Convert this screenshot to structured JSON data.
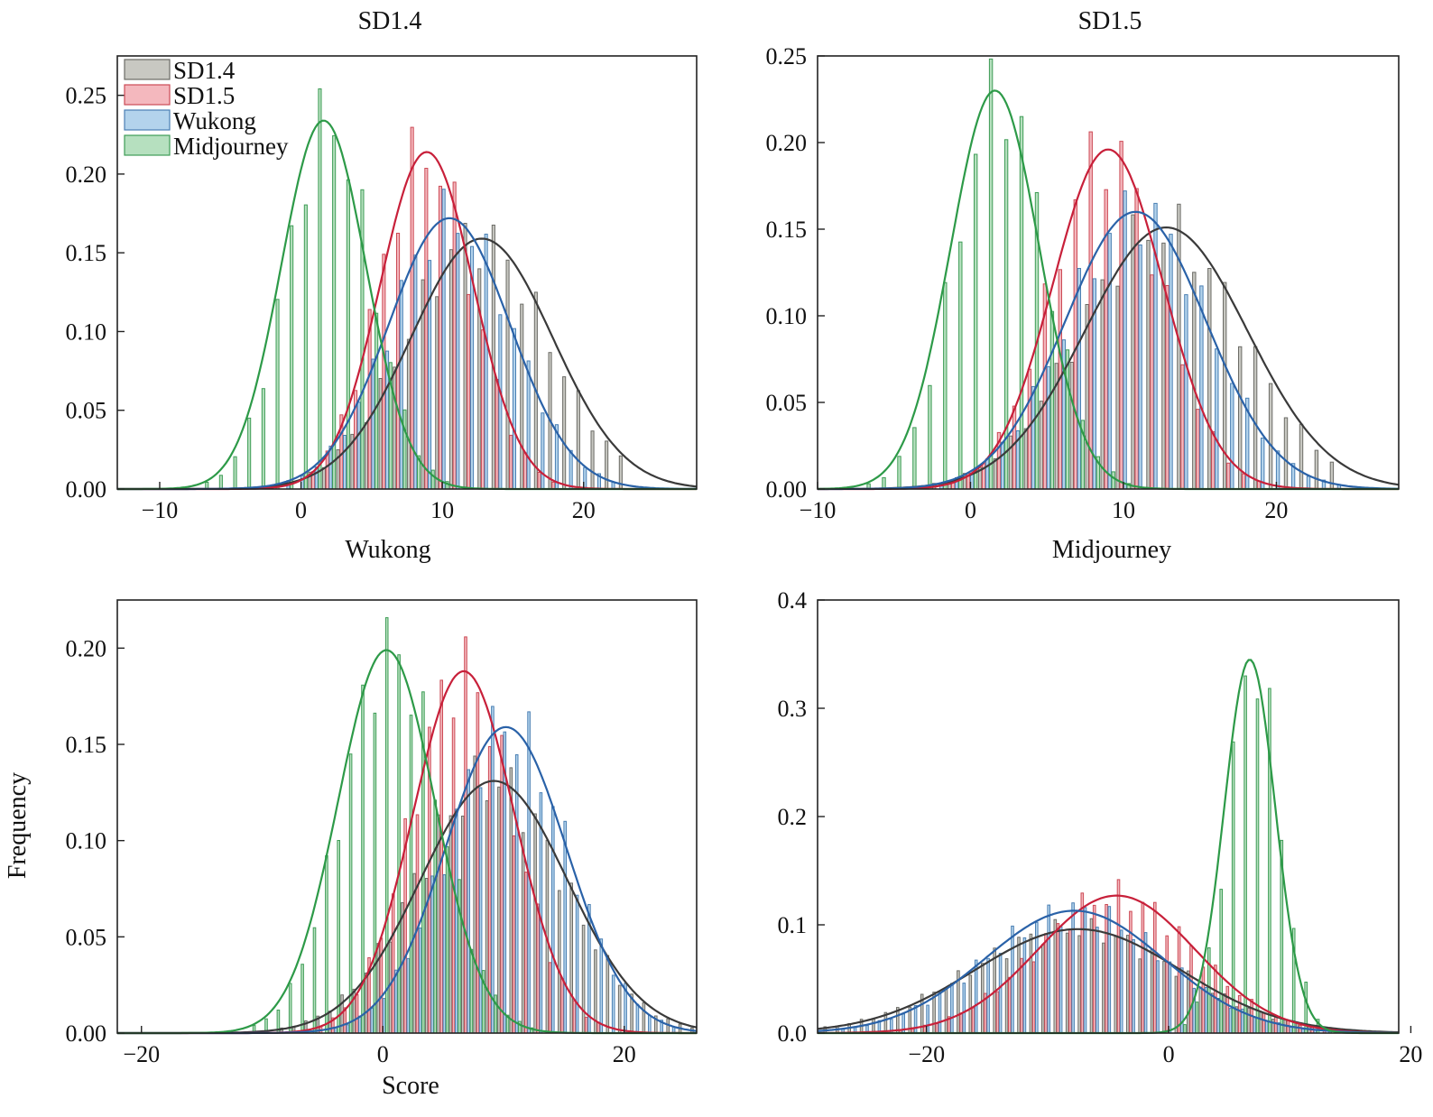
{
  "figure": {
    "ylabel_shared": "Frequency",
    "colors": {
      "SD1.4": {
        "fill": "#c8c8c2",
        "stroke": "#6b6b66",
        "line": "#3a3a3a"
      },
      "SD1.5": {
        "fill": "#f4b8be",
        "stroke": "#cc4a55",
        "line": "#c8203a"
      },
      "Wukong": {
        "fill": "#b3d3ec",
        "stroke": "#4a7fb3",
        "line": "#2a62a8"
      },
      "Midjourney": {
        "fill": "#b6e0bf",
        "stroke": "#3e9c56",
        "line": "#2d9a48"
      }
    },
    "legend_entries": [
      "SD1.4",
      "SD1.5",
      "Wukong",
      "Midjourney"
    ]
  },
  "chart_data": [
    {
      "type": "bar",
      "title": "SD1.4",
      "xlabel": "Wukong",
      "ylabel": "",
      "xlim": [
        -13,
        28
      ],
      "ylim": [
        0,
        0.275
      ],
      "xticks": [
        -10,
        0,
        10,
        20
      ],
      "xtick_labels": [
        "−10",
        "0",
        "10",
        "20"
      ],
      "yticks": [
        0,
        0.05,
        0.1,
        0.15,
        0.2,
        0.25
      ],
      "ytick_labels": [
        "0.00",
        "0.05",
        "0.10",
        "0.15",
        "0.20",
        "0.25"
      ],
      "legend": "top-left",
      "series": [
        {
          "name": "SD1.4",
          "mean": 12.8,
          "sd": 5.0,
          "peak": 0.159,
          "x_range": [
            1,
            23
          ]
        },
        {
          "name": "SD1.5",
          "mean": 8.9,
          "sd": 3.3,
          "peak": 0.214,
          "x_range": [
            1,
            21
          ]
        },
        {
          "name": "Wukong",
          "mean": 10.5,
          "sd": 4.3,
          "peak": 0.172,
          "x_range": [
            -3,
            25
          ]
        },
        {
          "name": "Midjourney",
          "mean": 1.6,
          "sd": 3.0,
          "peak": 0.234,
          "x_range": [
            -7,
            10
          ]
        }
      ]
    },
    {
      "type": "bar",
      "title": "SD1.5",
      "xlabel": "Midjourney",
      "ylabel": "",
      "xlim": [
        -10,
        28
      ],
      "ylim": [
        0,
        0.25
      ],
      "xticks": [
        -10,
        0,
        10,
        20
      ],
      "xtick_labels": [
        "−10",
        "0",
        "10",
        "20"
      ],
      "yticks": [
        0,
        0.05,
        0.1,
        0.15,
        0.2,
        0.25
      ],
      "ytick_labels": [
        "0.00",
        "0.05",
        "0.10",
        "0.15",
        "0.20",
        "0.25"
      ],
      "series": [
        {
          "name": "SD1.4",
          "mean": 12.8,
          "sd": 5.3,
          "peak": 0.151,
          "x_range": [
            -4,
            24
          ]
        },
        {
          "name": "SD1.5",
          "mean": 9.0,
          "sd": 3.6,
          "peak": 0.196,
          "x_range": [
            -2,
            22
          ]
        },
        {
          "name": "Wukong",
          "mean": 10.8,
          "sd": 4.6,
          "peak": 0.16,
          "x_range": [
            -3,
            26
          ]
        },
        {
          "name": "Midjourney",
          "mean": 1.6,
          "sd": 2.9,
          "peak": 0.23,
          "x_range": [
            -7,
            10
          ]
        }
      ]
    },
    {
      "type": "bar",
      "title": "",
      "xlabel": "Score",
      "ylabel": "",
      "xlim": [
        -22,
        26
      ],
      "ylim": [
        0,
        0.225
      ],
      "xticks": [
        -20,
        0,
        20
      ],
      "xtick_labels": [
        "−20",
        "0",
        "20"
      ],
      "yticks": [
        0,
        0.05,
        0.1,
        0.15,
        0.2
      ],
      "ytick_labels": [
        "0.00",
        "0.05",
        "0.10",
        "0.15",
        "0.20"
      ],
      "series": [
        {
          "name": "SD1.4",
          "mean": 9.2,
          "sd": 6.1,
          "peak": 0.131,
          "x_range": [
            -11,
            26
          ]
        },
        {
          "name": "SD1.5",
          "mean": 6.7,
          "sd": 4.2,
          "peak": 0.188,
          "x_range": [
            -9,
            23
          ]
        },
        {
          "name": "Wukong",
          "mean": 10.2,
          "sd": 5.0,
          "peak": 0.159,
          "x_range": [
            -9,
            26
          ]
        },
        {
          "name": "Midjourney",
          "mean": 0.3,
          "sd": 4.0,
          "peak": 0.199,
          "x_range": [
            -12,
            13
          ]
        }
      ]
    },
    {
      "type": "bar",
      "title": "",
      "xlabel": "",
      "ylabel": "",
      "xlim": [
        -29,
        19
      ],
      "ylim": [
        0,
        0.4
      ],
      "xticks": [
        -20,
        0,
        20
      ],
      "xtick_labels": [
        "−20",
        "0",
        "20"
      ],
      "yticks": [
        0,
        0.1,
        0.2,
        0.3,
        0.4
      ],
      "ytick_labels": [
        "0.0",
        "0.1",
        "0.2",
        "0.3",
        "0.4"
      ],
      "series": [
        {
          "name": "SD1.4",
          "mean": -7.5,
          "sd": 8.5,
          "peak": 0.096,
          "x_range": [
            -28,
            12
          ]
        },
        {
          "name": "SD1.5",
          "mean": -4.3,
          "sd": 6.5,
          "peak": 0.127,
          "x_range": [
            -22,
            14
          ]
        },
        {
          "name": "Wukong",
          "mean": -7.8,
          "sd": 7.4,
          "peak": 0.113,
          "x_range": [
            -27,
            12
          ]
        },
        {
          "name": "Midjourney",
          "mean": 6.7,
          "sd": 2.1,
          "peak": 0.345,
          "x_range": [
            1,
            13
          ]
        }
      ]
    }
  ]
}
